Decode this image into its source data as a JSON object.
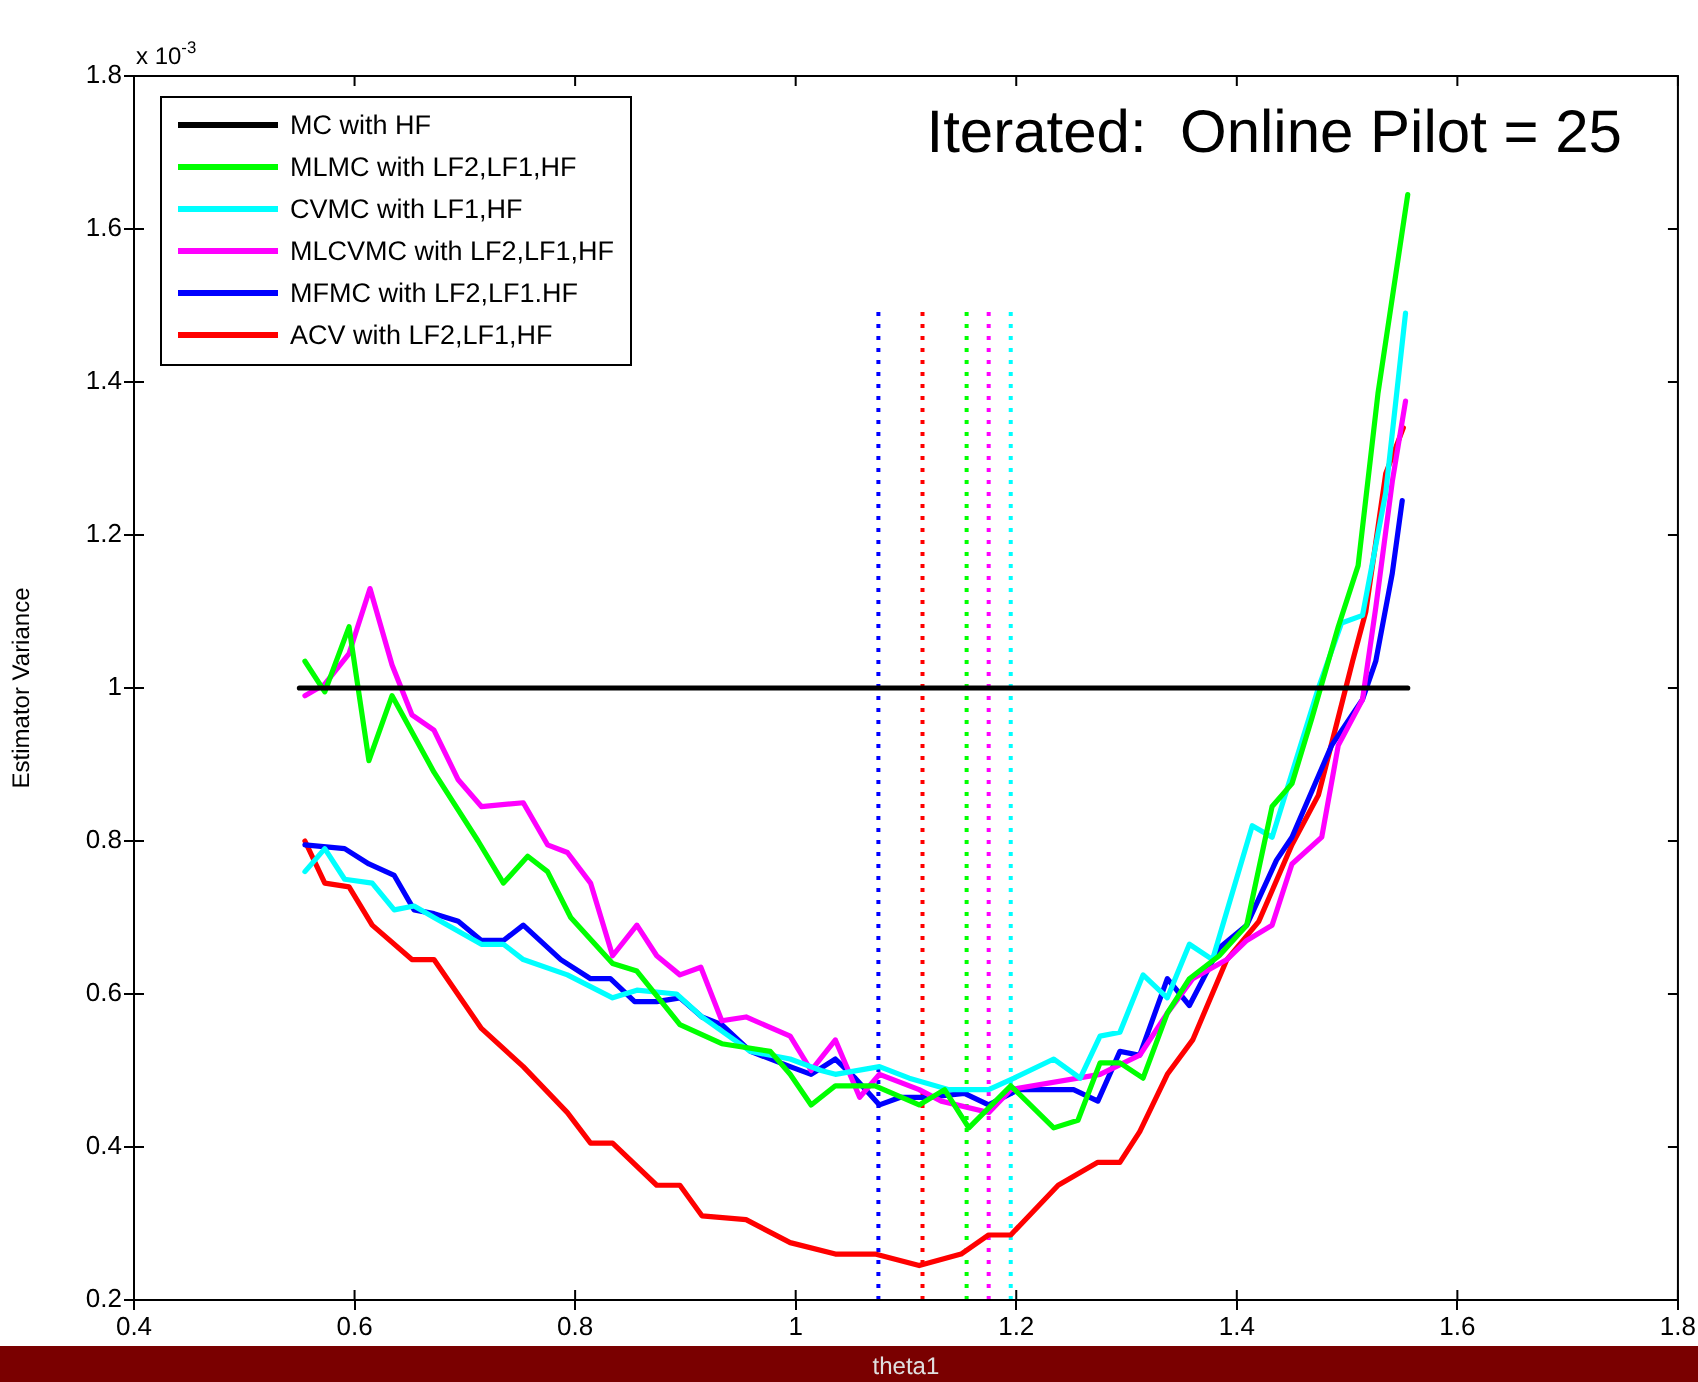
{
  "chart_data": {
    "type": "line",
    "xlabel": "theta1",
    "ylabel": "Estimator Variance",
    "annotations": [
      "Iterated:  Online Pilot = 25",
      "x 10$^{-3}$"
    ],
    "xlim": [
      0.4,
      1.8
    ],
    "xticks": [
      0.4,
      0.6,
      0.8,
      1,
      1.2,
      1.4,
      1.6,
      1.8
    ],
    "ylim": [
      0.2,
      1.8
    ],
    "yticks": [
      0.2,
      0.4,
      0.6,
      0.8,
      1,
      1.2,
      1.4,
      1.6,
      1.8
    ],
    "grid": false,
    "legend": "top left",
    "marker": "none",
    "line_style": "solid",
    "series": [
      {
        "name": "MC with HF",
        "color": "#000000",
        "x": [
          0.55,
          1.555
        ],
        "values": [
          1,
          1
        ]
      },
      {
        "name": "MLMC with LF2,LF1,HF",
        "color": "#00ff00",
        "x": [
          0.555,
          0.573,
          0.595,
          0.613,
          0.634,
          0.672,
          0.712,
          0.735,
          0.757,
          0.775,
          0.796,
          0.834,
          0.856,
          0.895,
          0.933,
          0.977,
          0.995,
          1.014,
          1.036,
          1.054,
          1.072,
          1.112,
          1.135,
          1.157,
          1.195,
          1.234,
          1.256,
          1.276,
          1.294,
          1.315,
          1.337,
          1.357,
          1.384,
          1.409,
          1.432,
          1.45,
          1.468,
          1.492,
          1.51,
          1.528,
          1.555
        ],
        "values": [
          1.035,
          0.995,
          1.08,
          0.905,
          0.99,
          0.89,
          0.8,
          0.745,
          0.78,
          0.76,
          0.7,
          0.64,
          0.63,
          0.56,
          0.535,
          0.525,
          0.495,
          0.455,
          0.48,
          0.48,
          0.48,
          0.455,
          0.475,
          0.425,
          0.48,
          0.425,
          0.435,
          0.51,
          0.51,
          0.49,
          0.575,
          0.62,
          0.65,
          0.69,
          0.845,
          0.875,
          0.96,
          1.08,
          1.16,
          1.385,
          1.645
        ]
      },
      {
        "name": "CVMC with LF1,HF",
        "color": "#00ffff",
        "x": [
          0.555,
          0.573,
          0.591,
          0.616,
          0.636,
          0.654,
          0.672,
          0.715,
          0.735,
          0.753,
          0.793,
          0.834,
          0.856,
          0.892,
          0.915,
          0.959,
          0.995,
          1.023,
          1.036,
          1.076,
          1.103,
          1.139,
          1.175,
          1.198,
          1.234,
          1.258,
          1.276,
          1.294,
          1.315,
          1.337,
          1.357,
          1.378,
          1.414,
          1.432,
          1.474,
          1.495,
          1.514,
          1.535,
          1.553
        ],
        "values": [
          0.76,
          0.79,
          0.75,
          0.745,
          0.71,
          0.715,
          0.7,
          0.665,
          0.665,
          0.645,
          0.625,
          0.595,
          0.605,
          0.6,
          0.57,
          0.525,
          0.515,
          0.5,
          0.495,
          0.505,
          0.49,
          0.475,
          0.475,
          0.49,
          0.515,
          0.49,
          0.545,
          0.55,
          0.625,
          0.595,
          0.665,
          0.645,
          0.82,
          0.805,
          1.0,
          1.085,
          1.095,
          1.255,
          1.49
        ]
      },
      {
        "name": "MLCVMC with LF2,LF1,HF",
        "color": "#ff00ff",
        "x": [
          0.555,
          0.573,
          0.595,
          0.614,
          0.634,
          0.652,
          0.672,
          0.694,
          0.715,
          0.753,
          0.775,
          0.793,
          0.814,
          0.834,
          0.856,
          0.874,
          0.895,
          0.914,
          0.933,
          0.955,
          0.995,
          1.014,
          1.036,
          1.058,
          1.076,
          1.112,
          1.132,
          1.175,
          1.195,
          1.276,
          1.312,
          1.337,
          1.36,
          1.391,
          1.409,
          1.432,
          1.45,
          1.477,
          1.492,
          1.514,
          1.526,
          1.541,
          1.553
        ],
        "values": [
          0.99,
          1.005,
          1.045,
          1.13,
          1.03,
          0.965,
          0.945,
          0.88,
          0.845,
          0.85,
          0.795,
          0.785,
          0.745,
          0.65,
          0.69,
          0.65,
          0.625,
          0.635,
          0.565,
          0.57,
          0.545,
          0.5,
          0.54,
          0.465,
          0.495,
          0.475,
          0.46,
          0.445,
          0.475,
          0.495,
          0.52,
          0.575,
          0.62,
          0.645,
          0.67,
          0.69,
          0.77,
          0.805,
          0.925,
          0.985,
          1.105,
          1.27,
          1.375
        ]
      },
      {
        "name": "MFMC with LF2,LF1.HF",
        "color": "#0000ff",
        "x": [
          0.555,
          0.591,
          0.613,
          0.636,
          0.654,
          0.672,
          0.694,
          0.715,
          0.735,
          0.753,
          0.787,
          0.814,
          0.832,
          0.854,
          0.874,
          0.895,
          0.915,
          0.933,
          0.959,
          0.995,
          1.014,
          1.036,
          1.054,
          1.076,
          1.095,
          1.121,
          1.153,
          1.175,
          1.202,
          1.252,
          1.274,
          1.294,
          1.312,
          1.337,
          1.357,
          1.384,
          1.409,
          1.436,
          1.45,
          1.486,
          1.514,
          1.526,
          1.541,
          1.55
        ],
        "values": [
          0.795,
          0.79,
          0.77,
          0.755,
          0.71,
          0.705,
          0.695,
          0.67,
          0.67,
          0.69,
          0.645,
          0.62,
          0.62,
          0.59,
          0.59,
          0.595,
          0.57,
          0.56,
          0.525,
          0.505,
          0.495,
          0.515,
          0.49,
          0.455,
          0.465,
          0.465,
          0.47,
          0.455,
          0.475,
          0.475,
          0.46,
          0.525,
          0.52,
          0.62,
          0.585,
          0.66,
          0.69,
          0.775,
          0.805,
          0.925,
          0.985,
          1.035,
          1.15,
          1.245
        ]
      },
      {
        "name": "ACV with LF2,LF1,HF",
        "color": "#ff0000",
        "x": [
          0.555,
          0.573,
          0.595,
          0.616,
          0.652,
          0.672,
          0.715,
          0.753,
          0.793,
          0.814,
          0.834,
          0.874,
          0.895,
          0.915,
          0.955,
          0.995,
          1.036,
          1.072,
          1.112,
          1.15,
          1.175,
          1.195,
          1.238,
          1.274,
          1.294,
          1.312,
          1.337,
          1.36,
          1.391,
          1.42,
          1.45,
          1.474,
          1.49,
          1.505,
          1.517,
          1.535,
          1.551
        ],
        "values": [
          0.8,
          0.745,
          0.74,
          0.69,
          0.645,
          0.645,
          0.555,
          0.505,
          0.445,
          0.405,
          0.405,
          0.35,
          0.35,
          0.31,
          0.305,
          0.275,
          0.26,
          0.26,
          0.245,
          0.26,
          0.285,
          0.285,
          0.35,
          0.38,
          0.38,
          0.42,
          0.495,
          0.54,
          0.645,
          0.695,
          0.795,
          0.86,
          0.95,
          1.035,
          1.1,
          1.28,
          1.34
        ]
      },
      {
        "color": "#0000ff",
        "line_style": "dotted",
        "x": [
          1.075,
          1.075
        ],
        "values": [
          0.2,
          1.5
        ]
      },
      {
        "color": "#ff0000",
        "line_style": "dotted",
        "x": [
          1.115,
          1.115
        ],
        "values": [
          0.2,
          1.5
        ]
      },
      {
        "color": "#00ff00",
        "line_style": "dotted",
        "x": [
          1.155,
          1.155
        ],
        "values": [
          0.2,
          1.5
        ]
      },
      {
        "color": "#ff00ff",
        "line_style": "dotted",
        "x": [
          1.175,
          1.175
        ],
        "values": [
          0.2,
          1.5
        ]
      },
      {
        "color": "#00ffff",
        "line_style": "dotted",
        "x": [
          1.195,
          1.195
        ],
        "values": [
          0.2,
          1.5
        ]
      }
    ]
  }
}
